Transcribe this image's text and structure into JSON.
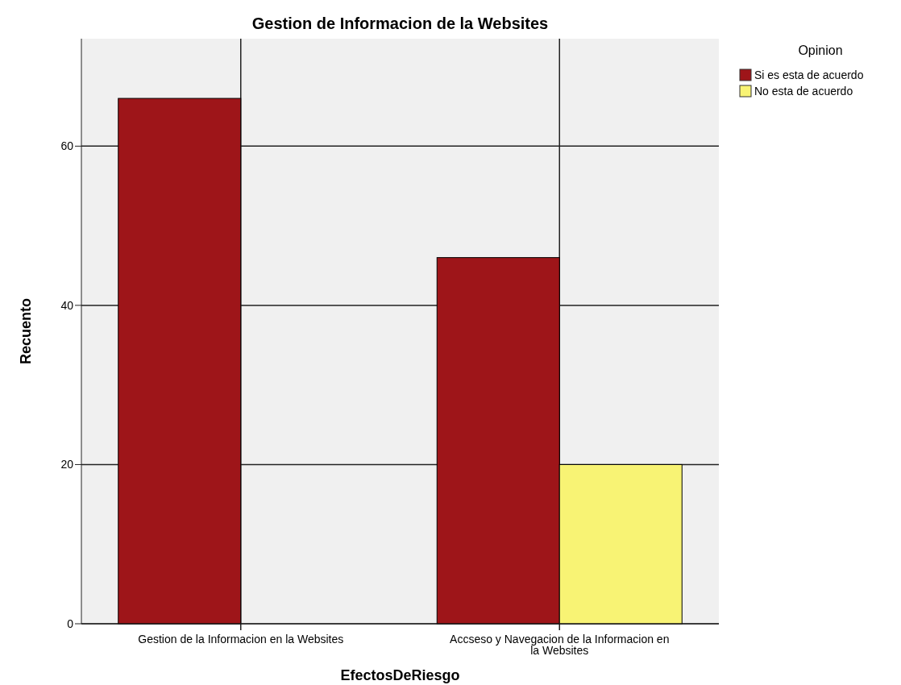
{
  "chart_data": {
    "type": "bar",
    "title": "Gestion de Informacion de la Websites",
    "xlabel": "EfectosDeRiesgo",
    "ylabel": "Recuento",
    "legend_title": "Opinion",
    "categories": [
      "Gestion de la Informacion en la Websites",
      "Accseso y Navegacion de la Informacion en la Websites"
    ],
    "series": [
      {
        "name": "Si es esta de acuerdo",
        "color": "#9e1519",
        "values": [
          66,
          46
        ]
      },
      {
        "name": "No esta de acuerdo",
        "color": "#f8f374",
        "values": [
          null,
          20
        ]
      }
    ],
    "ylim": [
      0,
      73.5
    ],
    "yticks": [
      0,
      20,
      40,
      60
    ],
    "grid": true,
    "legend": "right"
  }
}
